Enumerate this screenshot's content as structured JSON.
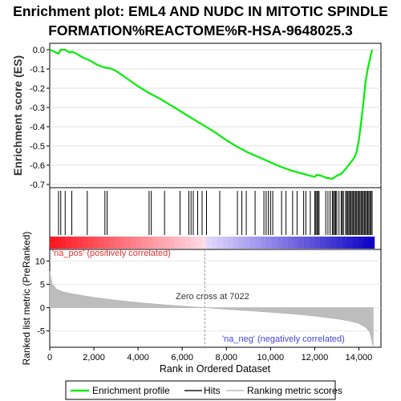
{
  "title_line1": "Enrichment plot: EML4 AND NUDC IN MITOTIC SPINDLE",
  "title_line2": "FORMATION%REACTOME%R-HSA-9648025.3",
  "chart_data": {
    "type": "line",
    "es_panel": {
      "ylabel": "Enrichment score (ES)",
      "ylim": [
        -0.7,
        0.0
      ],
      "yticks": [
        "0.0",
        "-0.1",
        "-0.2",
        "-0.3",
        "-0.4",
        "-0.5",
        "-0.6",
        "-0.7"
      ],
      "series": [
        {
          "name": "Enrichment profile",
          "color": "#00ee00",
          "x": [
            0,
            300,
            400,
            500,
            700,
            900,
            1000,
            1200,
            1500,
            1800,
            2100,
            2400,
            2600,
            2700,
            3000,
            3500,
            4000,
            4500,
            5000,
            5500,
            6000,
            6500,
            7000,
            7500,
            8000,
            8500,
            9000,
            9500,
            10000,
            10500,
            11000,
            11500,
            11800,
            12000,
            12100,
            12300,
            12500,
            12800,
            13000,
            13200,
            13400,
            13600,
            13800,
            13900,
            14000,
            14100,
            14200,
            14300,
            14400,
            14500,
            14600
          ],
          "y": [
            0.0,
            -0.015,
            -0.02,
            0.0,
            0.0,
            -0.015,
            -0.01,
            -0.02,
            -0.04,
            -0.055,
            -0.075,
            -0.09,
            -0.095,
            -0.095,
            -0.11,
            -0.15,
            -0.19,
            -0.225,
            -0.255,
            -0.29,
            -0.325,
            -0.36,
            -0.395,
            -0.43,
            -0.47,
            -0.505,
            -0.535,
            -0.56,
            -0.585,
            -0.61,
            -0.63,
            -0.645,
            -0.655,
            -0.66,
            -0.65,
            -0.655,
            -0.665,
            -0.67,
            -0.655,
            -0.645,
            -0.62,
            -0.59,
            -0.56,
            -0.53,
            -0.47,
            -0.38,
            -0.28,
            -0.17,
            -0.1,
            -0.05,
            0.0
          ]
        }
      ]
    },
    "hits": [
      400,
      500,
      700,
      1000,
      1700,
      2500,
      2600,
      4500,
      4600,
      5200,
      5900,
      6300,
      6400,
      6500,
      6700,
      6900,
      7100,
      7700,
      8500,
      8700,
      8900,
      9300,
      9700,
      9800,
      9900,
      10000,
      10100,
      10500,
      10700,
      11000,
      11200,
      11500,
      11600,
      11800,
      12000,
      12050,
      12100,
      12150,
      12200,
      12500,
      12600,
      12700,
      12800,
      12850,
      12900,
      12950,
      13000,
      13100,
      13200,
      13250,
      13300,
      13400,
      13450,
      13500,
      13550,
      13600,
      13650,
      13700,
      13750,
      13800,
      13850,
      13900,
      13950,
      14000,
      14050,
      14100,
      14150,
      14200,
      14250,
      14300,
      14350,
      14400,
      14450,
      14500,
      14550,
      14600
    ],
    "metric_panel": {
      "ylabel": "Ranked list metric (PreRanked)",
      "ylim": [
        -8.5,
        12.5
      ],
      "yticks": [
        "10",
        "5",
        "0",
        "-5"
      ],
      "ytick_values": [
        10,
        5,
        0,
        -5
      ],
      "series": [
        {
          "name": "Ranking metric scores",
          "x": [
            0,
            100,
            300,
            600,
            1000,
            1500,
            2000,
            3000,
            4000,
            5000,
            6000,
            7022,
            8000,
            9000,
            10000,
            11000,
            12000,
            13000,
            13500,
            14000,
            14300,
            14500,
            14650
          ],
          "y": [
            7.8,
            5.2,
            4.0,
            3.4,
            3.0,
            2.6,
            2.2,
            1.6,
            1.1,
            0.7,
            0.35,
            0.0,
            -0.35,
            -0.65,
            -1.0,
            -1.35,
            -1.8,
            -2.4,
            -2.8,
            -3.4,
            -4.2,
            -5.3,
            -8.5
          ]
        }
      ],
      "annotations": {
        "pos": "'na_pos' (positively correlated)",
        "neg": "'na_neg' (negatively correlated)",
        "zero_cross": "Zero cross at 7022"
      }
    },
    "x_axis": {
      "label": "Rank in Ordered Dataset",
      "xlim": [
        0,
        15000
      ],
      "ticks": [
        "0",
        "2,000",
        "4,000",
        "6,000",
        "8,000",
        "10,000",
        "12,000",
        "14,000"
      ],
      "tick_values": [
        0,
        2000,
        4000,
        6000,
        8000,
        10000,
        12000,
        14000
      ],
      "max_rank": 14700,
      "zero_cross": 7022
    },
    "legend": {
      "position": "bottom",
      "items": [
        {
          "label": "Enrichment profile",
          "color": "#00ee00"
        },
        {
          "label": "Hits",
          "color": "#000000"
        },
        {
          "label": "Ranking metric scores",
          "color": "#cccccc"
        }
      ]
    }
  }
}
